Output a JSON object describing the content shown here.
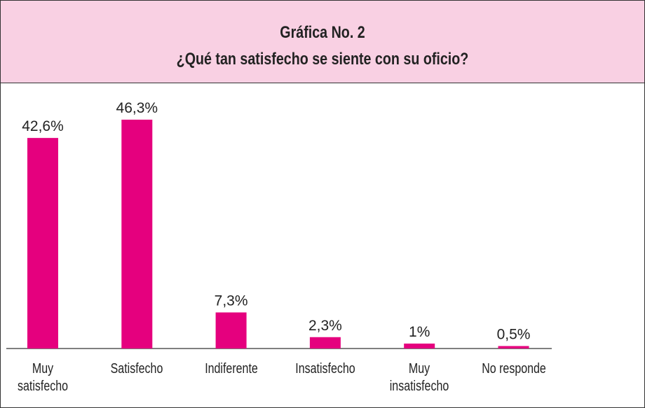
{
  "chart_data": {
    "type": "bar",
    "title": "Gráfica No. 2",
    "subtitle": "¿Qué tan satisfecho se siente con su oficio?",
    "categories": [
      "Muy satisfecho",
      "Satisfecho",
      "Indiferente",
      "Insatisfecho",
      "Muy insatisfecho",
      "No responde"
    ],
    "values": [
      42.6,
      46.3,
      7.3,
      2.3,
      1,
      0.5
    ],
    "value_labels": [
      "42,6%",
      "46,3%",
      "7,3%",
      "2,3%",
      "1%",
      "0,5%"
    ],
    "color": "#e5007e"
  }
}
